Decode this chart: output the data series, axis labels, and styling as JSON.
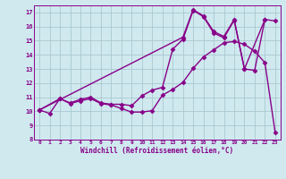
{
  "background_color": "#cfe9ef",
  "grid_color": "#aac8d0",
  "line_color": "#880088",
  "marker": "D",
  "markersize": 2.5,
  "linewidth": 1.0,
  "xlabel": "Windchill (Refroidissement éolien,°C)",
  "xlim": [
    -0.5,
    23.5
  ],
  "ylim": [
    8.0,
    17.5
  ],
  "xticks": [
    0,
    1,
    2,
    3,
    4,
    5,
    6,
    7,
    8,
    9,
    10,
    11,
    12,
    13,
    14,
    15,
    16,
    17,
    18,
    19,
    20,
    21,
    22,
    23
  ],
  "yticks": [
    8,
    9,
    10,
    11,
    12,
    13,
    14,
    15,
    16,
    17
  ],
  "series": [
    {
      "x": [
        0,
        1,
        2,
        3,
        4,
        5,
        6,
        7,
        8,
        9,
        10,
        11,
        12,
        13,
        14,
        15,
        16,
        17,
        18,
        19,
        20,
        21,
        22,
        23
      ],
      "y": [
        10.1,
        9.85,
        10.9,
        10.55,
        10.75,
        10.9,
        10.55,
        10.45,
        10.2,
        9.95,
        9.95,
        10.05,
        11.15,
        11.55,
        12.05,
        13.05,
        13.85,
        14.35,
        14.85,
        14.95,
        14.75,
        14.25,
        13.45,
        8.5
      ]
    },
    {
      "x": [
        0,
        2,
        3,
        4,
        5,
        6,
        7,
        8,
        9,
        10,
        11,
        12,
        13,
        14,
        15,
        16,
        17,
        18,
        19,
        20,
        22
      ],
      "y": [
        10.1,
        10.9,
        10.6,
        10.85,
        11.0,
        10.6,
        10.5,
        10.5,
        10.4,
        11.1,
        11.5,
        11.7,
        14.4,
        15.1,
        17.15,
        16.7,
        15.55,
        15.2,
        16.45,
        13.0,
        16.5
      ]
    },
    {
      "x": [
        0,
        14,
        15,
        16,
        17,
        18,
        19,
        20,
        21,
        22,
        23
      ],
      "y": [
        10.1,
        15.25,
        17.2,
        16.75,
        15.65,
        15.3,
        16.5,
        13.0,
        12.9,
        16.5,
        16.4
      ]
    }
  ]
}
